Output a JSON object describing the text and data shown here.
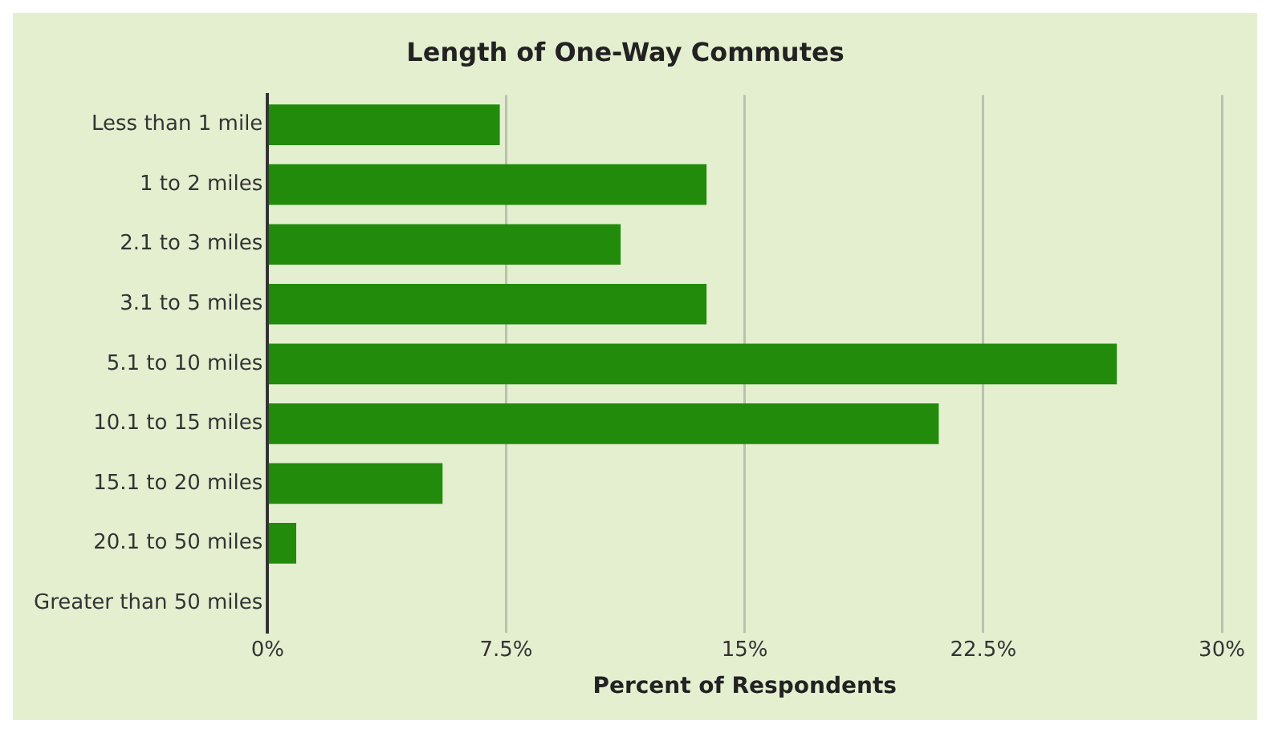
{
  "chart_data": {
    "type": "bar",
    "orientation": "horizontal",
    "title": "Length of One-Way Commutes",
    "xlabel": "Percent of Respondents",
    "categories": [
      "Less than 1 mile",
      "1 to 2 miles",
      "2.1 to 3 miles",
      "3.1 to 5 miles",
      "5.1 to 10 miles",
      "10.1 to 15 miles",
      "15.1 to 20 miles",
      "20.1 to 50 miles",
      "Greater than 50 miles"
    ],
    "values": [
      7.3,
      13.8,
      11.1,
      13.8,
      26.7,
      21.1,
      5.5,
      0.9,
      0
    ],
    "color": "#228b0c",
    "xlim": [
      0,
      30
    ],
    "xticks": [
      {
        "value": 0,
        "label": "0%"
      },
      {
        "value": 7.5,
        "label": "7.5%"
      },
      {
        "value": 15,
        "label": "15%"
      },
      {
        "value": 22.5,
        "label": "22.5%"
      },
      {
        "value": 30,
        "label": "30%"
      }
    ],
    "grid": "x",
    "legend": false
  }
}
